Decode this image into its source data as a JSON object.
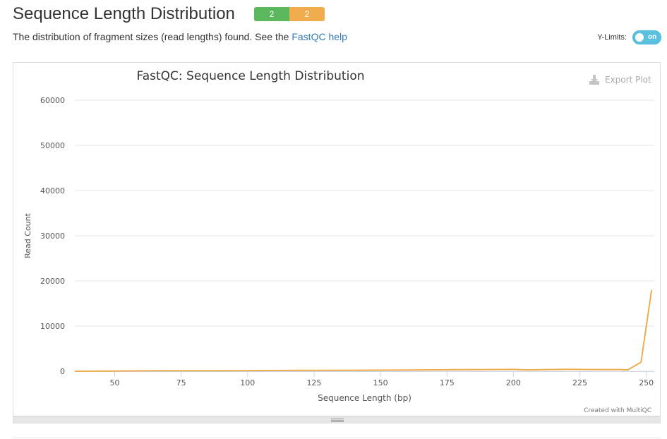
{
  "section": {
    "title": "Sequence Length Distribution",
    "badges": [
      {
        "label": "2",
        "status": "pass",
        "color": "#5cb85c"
      },
      {
        "label": "2",
        "status": "warn",
        "color": "#f0ad4e"
      }
    ],
    "description_prefix": "The distribution of fragment sizes (read lengths) found. See the",
    "help_link_text": "FastQC help",
    "ylimits_label": "Y-Limits:",
    "ylimits_toggle": "on"
  },
  "plot": {
    "export_label": "Export Plot",
    "credit": "Created with MultiQC"
  },
  "chart_data": {
    "type": "line",
    "title": "FastQC: Sequence Length Distribution",
    "xlabel": "Sequence Length (bp)",
    "ylabel": "Read Count",
    "xlim": [
      35,
      253
    ],
    "ylim": [
      0,
      60000
    ],
    "xticks": [
      50,
      75,
      100,
      125,
      150,
      175,
      200,
      225,
      250
    ],
    "yticks": [
      0,
      10000,
      20000,
      30000,
      40000,
      50000,
      60000
    ],
    "grid": true,
    "series": [
      {
        "color": "#f0ad4e",
        "x": [
          35,
          40,
          45,
          50,
          55,
          60,
          70,
          80,
          90,
          100,
          110,
          120,
          130,
          140,
          150,
          160,
          170,
          180,
          190,
          200,
          205,
          210,
          220,
          230,
          240,
          243,
          248,
          252
        ],
        "y": [
          0,
          10,
          30,
          50,
          80,
          100,
          110,
          120,
          130,
          140,
          160,
          180,
          200,
          220,
          250,
          280,
          310,
          340,
          370,
          400,
          300,
          350,
          420,
          380,
          380,
          300,
          2000,
          18000
        ]
      }
    ]
  }
}
